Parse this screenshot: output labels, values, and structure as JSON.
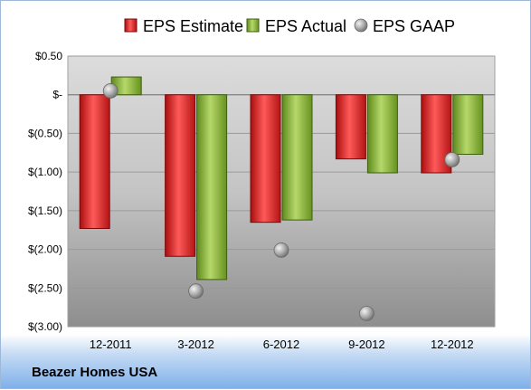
{
  "chart_data": {
    "type": "bar",
    "categories": [
      "12-2011",
      "3-2012",
      "6-2012",
      "9-2012",
      "12-2012"
    ],
    "series": [
      {
        "name": "EPS Estimate",
        "kind": "bar",
        "color": "#cc1f1f",
        "values": [
          -1.73,
          -2.09,
          -1.65,
          -0.83,
          -1.01
        ]
      },
      {
        "name": "EPS Actual",
        "kind": "bar",
        "color": "#7faa32",
        "values": [
          0.23,
          -2.39,
          -1.62,
          -1.01,
          -0.77
        ]
      },
      {
        "name": "EPS GAAP",
        "kind": "scatter",
        "color": "#9a9a9a",
        "values": [
          0.05,
          -2.54,
          -2.01,
          -2.83,
          -0.84
        ]
      }
    ],
    "yticks": [
      {
        "value": 0.5,
        "label": "$0.50"
      },
      {
        "value": 0,
        "label": "$-"
      },
      {
        "value": -0.5,
        "label": "$(0.50)"
      },
      {
        "value": -1.0,
        "label": "$(1.00)"
      },
      {
        "value": -1.5,
        "label": "$(1.50)"
      },
      {
        "value": -2.0,
        "label": "$(2.00)"
      },
      {
        "value": -2.5,
        "label": "$(2.50)"
      },
      {
        "value": -3.0,
        "label": "$(3.00)"
      }
    ],
    "ylim": [
      -3.0,
      0.5
    ],
    "legend_position": "top",
    "grid": true
  },
  "footer": {
    "company": "Beazer Homes USA"
  }
}
